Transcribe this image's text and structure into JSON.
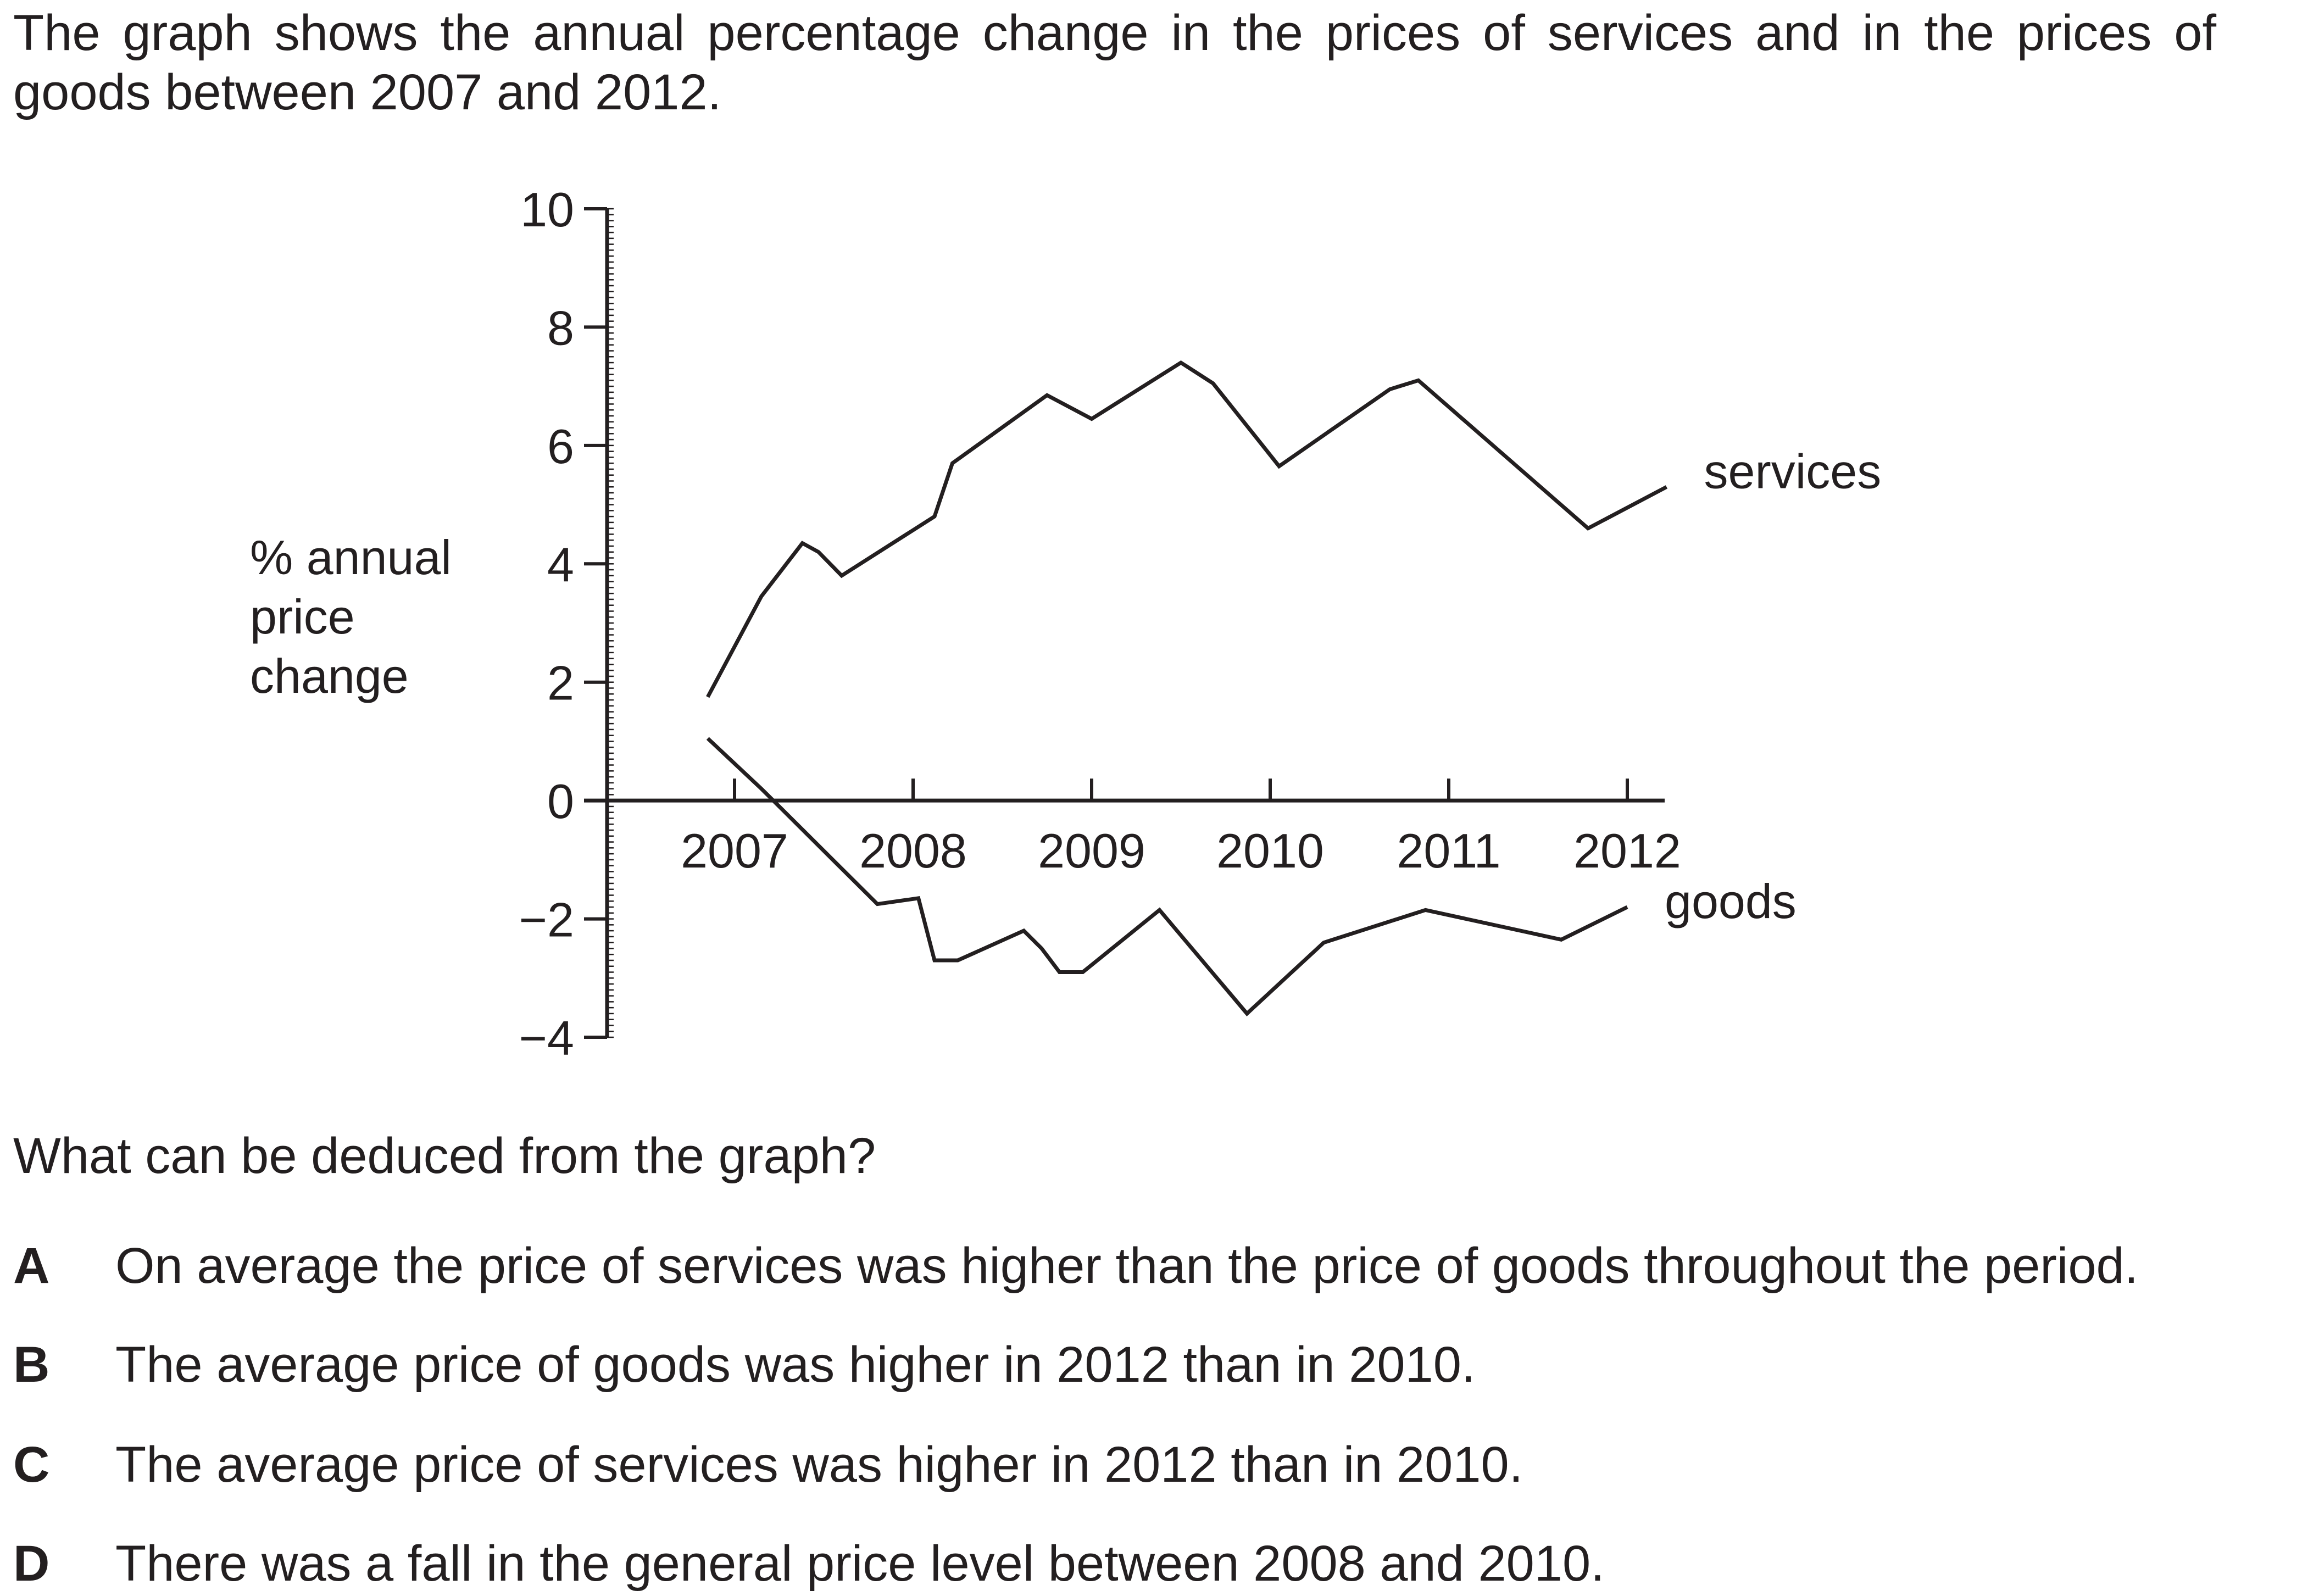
{
  "intro": "The graph shows the annual percentage change in the prices of services and in the prices of goods between 2007 and 2012.",
  "question": "What can be deduced from the graph?",
  "options": [
    {
      "letter": "A",
      "text": "On average the price of services was higher than the price of goods throughout the period."
    },
    {
      "letter": "B",
      "text": "The average price of goods was higher in 2012 than in 2010."
    },
    {
      "letter": "C",
      "text": "The average price of services was higher in 2012 than in 2010."
    },
    {
      "letter": "D",
      "text": "There was a fall in the general price level between 2008 and 2010."
    }
  ],
  "colors": {
    "ink": "#231f20"
  },
  "chart_data": {
    "type": "line",
    "title": "",
    "xlabel": "",
    "ylabel": "% annual price change",
    "ylabel_lines": [
      "% annual",
      "price",
      "change"
    ],
    "xlim": [
      2006.85,
      2012.2
    ],
    "ylim": [
      -4,
      10
    ],
    "yticks": [
      10,
      8,
      6,
      4,
      2,
      0,
      -2,
      -4
    ],
    "ytick_labels": [
      "10",
      "8",
      "6",
      "4",
      "2",
      "0",
      "−2",
      "−4"
    ],
    "xticks": [
      2007,
      2008,
      2009,
      2010,
      2011,
      2012
    ],
    "xtick_labels": [
      "2007",
      "2008",
      "2009",
      "2010",
      "2011",
      "2012"
    ],
    "grid": false,
    "legend": "inline labels at right end of each line",
    "series": [
      {
        "name": "services",
        "x": [
          2006.85,
          2007.15,
          2007.38,
          2007.47,
          2007.6,
          2008.12,
          2008.22,
          2008.75,
          2009.0,
          2009.5,
          2009.68,
          2010.05,
          2010.67,
          2010.83,
          2011.78,
          2012.22
        ],
        "y": [
          1.75,
          3.45,
          4.35,
          4.2,
          3.8,
          4.8,
          5.7,
          6.85,
          6.45,
          7.4,
          7.05,
          5.65,
          6.95,
          7.1,
          4.6,
          5.3
        ]
      },
      {
        "name": "goods",
        "x": [
          2006.85,
          2007.15,
          2007.8,
          2008.03,
          2008.12,
          2008.25,
          2008.62,
          2008.72,
          2008.82,
          2008.95,
          2009.38,
          2009.87,
          2010.3,
          2010.87,
          2011.63,
          2012.0
        ],
        "y": [
          1.05,
          0.2,
          -1.75,
          -1.65,
          -2.7,
          -2.7,
          -2.2,
          -2.5,
          -2.9,
          -2.9,
          -1.85,
          -3.6,
          -2.4,
          -1.85,
          -2.35,
          -1.8
        ]
      }
    ]
  }
}
